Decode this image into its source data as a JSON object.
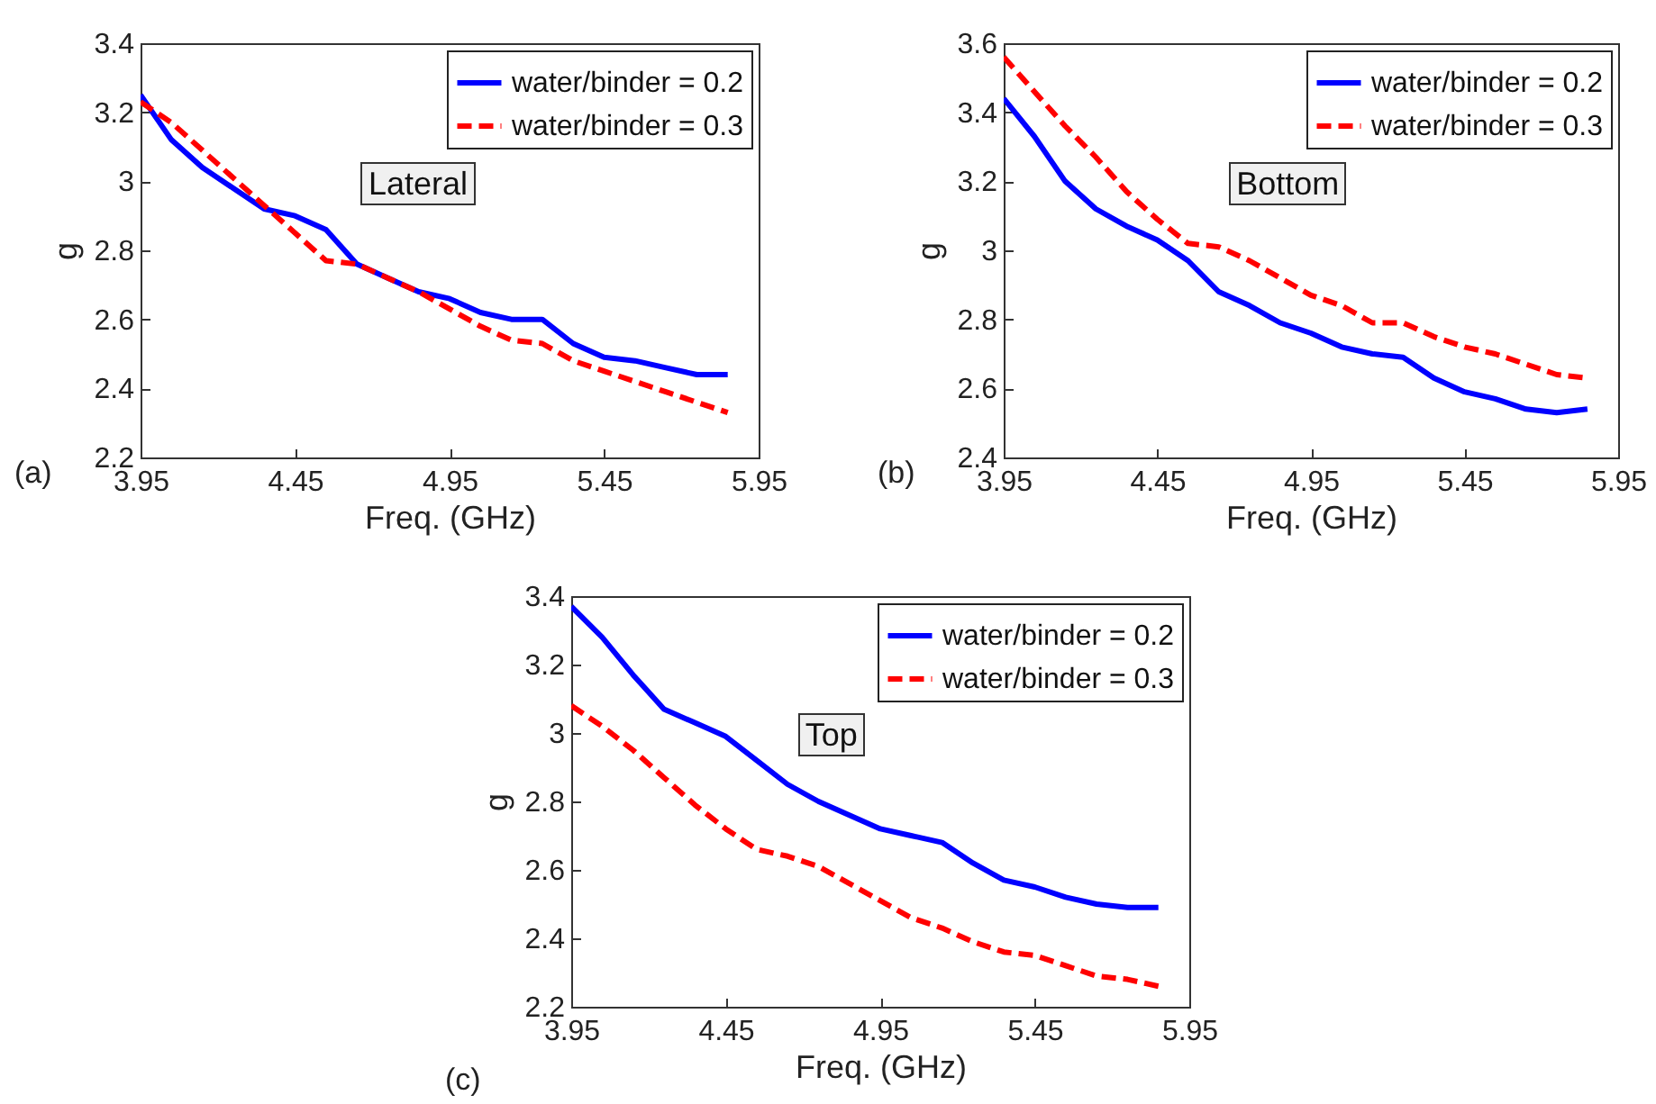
{
  "chart_data": [
    {
      "type": "line",
      "xlabel": "Freq. (GHz)",
      "ylabel": "g",
      "annotations": [
        "(a)",
        "Lateral"
      ],
      "legend": "top right",
      "grid": false,
      "xlim": [
        3.95,
        5.95
      ],
      "xticks": [
        3.95,
        4.45,
        4.95,
        5.45,
        5.95
      ],
      "ylim": [
        2.2,
        3.4
      ],
      "yticks": [
        2.2,
        2.4,
        2.6,
        2.8,
        3,
        3.2,
        3.4
      ],
      "x": [
        3.95,
        4.05,
        4.15,
        4.25,
        4.35,
        4.45,
        4.55,
        4.65,
        4.75,
        4.85,
        4.95,
        5.05,
        5.15,
        5.25,
        5.35,
        5.45,
        5.55,
        5.65,
        5.75,
        5.85
      ],
      "series": [
        {
          "name": "water/binder = 0.2",
          "color": "#0000ff",
          "line_style": "solid",
          "values": [
            3.25,
            3.12,
            3.04,
            2.98,
            2.92,
            2.9,
            2.86,
            2.76,
            2.72,
            2.68,
            2.66,
            2.62,
            2.6,
            2.6,
            2.53,
            2.49,
            2.48,
            2.46,
            2.44,
            2.44
          ]
        },
        {
          "name": "water/binder = 0.3",
          "color": "#ff0000",
          "line_style": "dashed",
          "values": [
            3.23,
            3.17,
            3.09,
            3.01,
            2.93,
            2.85,
            2.77,
            2.76,
            2.72,
            2.68,
            2.63,
            2.58,
            2.54,
            2.53,
            2.48,
            2.45,
            2.42,
            2.39,
            2.36,
            2.33
          ]
        }
      ]
    },
    {
      "type": "line",
      "xlabel": "Freq. (GHz)",
      "ylabel": "g",
      "annotations": [
        "(b)",
        "Bottom"
      ],
      "legend": "top right",
      "grid": false,
      "xlim": [
        3.95,
        5.95
      ],
      "xticks": [
        3.95,
        4.45,
        4.95,
        5.45,
        5.95
      ],
      "ylim": [
        2.4,
        3.6
      ],
      "yticks": [
        2.4,
        2.6,
        2.8,
        3,
        3.2,
        3.4,
        3.6
      ],
      "x": [
        3.95,
        4.05,
        4.15,
        4.25,
        4.35,
        4.45,
        4.55,
        4.65,
        4.75,
        4.85,
        4.95,
        5.05,
        5.15,
        5.25,
        5.35,
        5.45,
        5.55,
        5.65,
        5.75,
        5.85
      ],
      "series": [
        {
          "name": "water/binder = 0.2",
          "color": "#0000ff",
          "line_style": "solid",
          "values": [
            3.44,
            3.33,
            3.2,
            3.12,
            3.07,
            3.03,
            2.97,
            2.88,
            2.84,
            2.79,
            2.76,
            2.72,
            2.7,
            2.69,
            2.63,
            2.59,
            2.57,
            2.54,
            2.53,
            2.54
          ]
        },
        {
          "name": "water/binder = 0.3",
          "color": "#ff0000",
          "line_style": "dashed",
          "values": [
            3.56,
            3.46,
            3.36,
            3.27,
            3.17,
            3.09,
            3.02,
            3.01,
            2.97,
            2.92,
            2.87,
            2.84,
            2.79,
            2.79,
            2.75,
            2.72,
            2.7,
            2.67,
            2.64,
            2.63
          ]
        }
      ]
    },
    {
      "type": "line",
      "xlabel": "Freq. (GHz)",
      "ylabel": "g",
      "annotations": [
        "(c)",
        "Top"
      ],
      "legend": "top right",
      "grid": false,
      "xlim": [
        3.95,
        5.95
      ],
      "xticks": [
        3.95,
        4.45,
        4.95,
        5.45,
        5.95
      ],
      "ylim": [
        2.2,
        3.4
      ],
      "yticks": [
        2.2,
        2.4,
        2.6,
        2.8,
        3,
        3.2,
        3.4
      ],
      "x": [
        3.95,
        4.05,
        4.15,
        4.25,
        4.35,
        4.45,
        4.55,
        4.65,
        4.75,
        4.85,
        4.95,
        5.05,
        5.15,
        5.25,
        5.35,
        5.45,
        5.55,
        5.65,
        5.75,
        5.85
      ],
      "series": [
        {
          "name": "water/binder = 0.2",
          "color": "#0000ff",
          "line_style": "solid",
          "values": [
            3.37,
            3.28,
            3.17,
            3.07,
            3.03,
            2.99,
            2.92,
            2.85,
            2.8,
            2.76,
            2.72,
            2.7,
            2.68,
            2.62,
            2.57,
            2.55,
            2.52,
            2.5,
            2.49,
            2.49
          ]
        },
        {
          "name": "water/binder = 0.3",
          "color": "#ff0000",
          "line_style": "dashed",
          "values": [
            3.08,
            3.02,
            2.95,
            2.87,
            2.79,
            2.72,
            2.66,
            2.64,
            2.61,
            2.56,
            2.51,
            2.46,
            2.43,
            2.39,
            2.36,
            2.35,
            2.32,
            2.29,
            2.28,
            2.26
          ]
        }
      ]
    }
  ]
}
